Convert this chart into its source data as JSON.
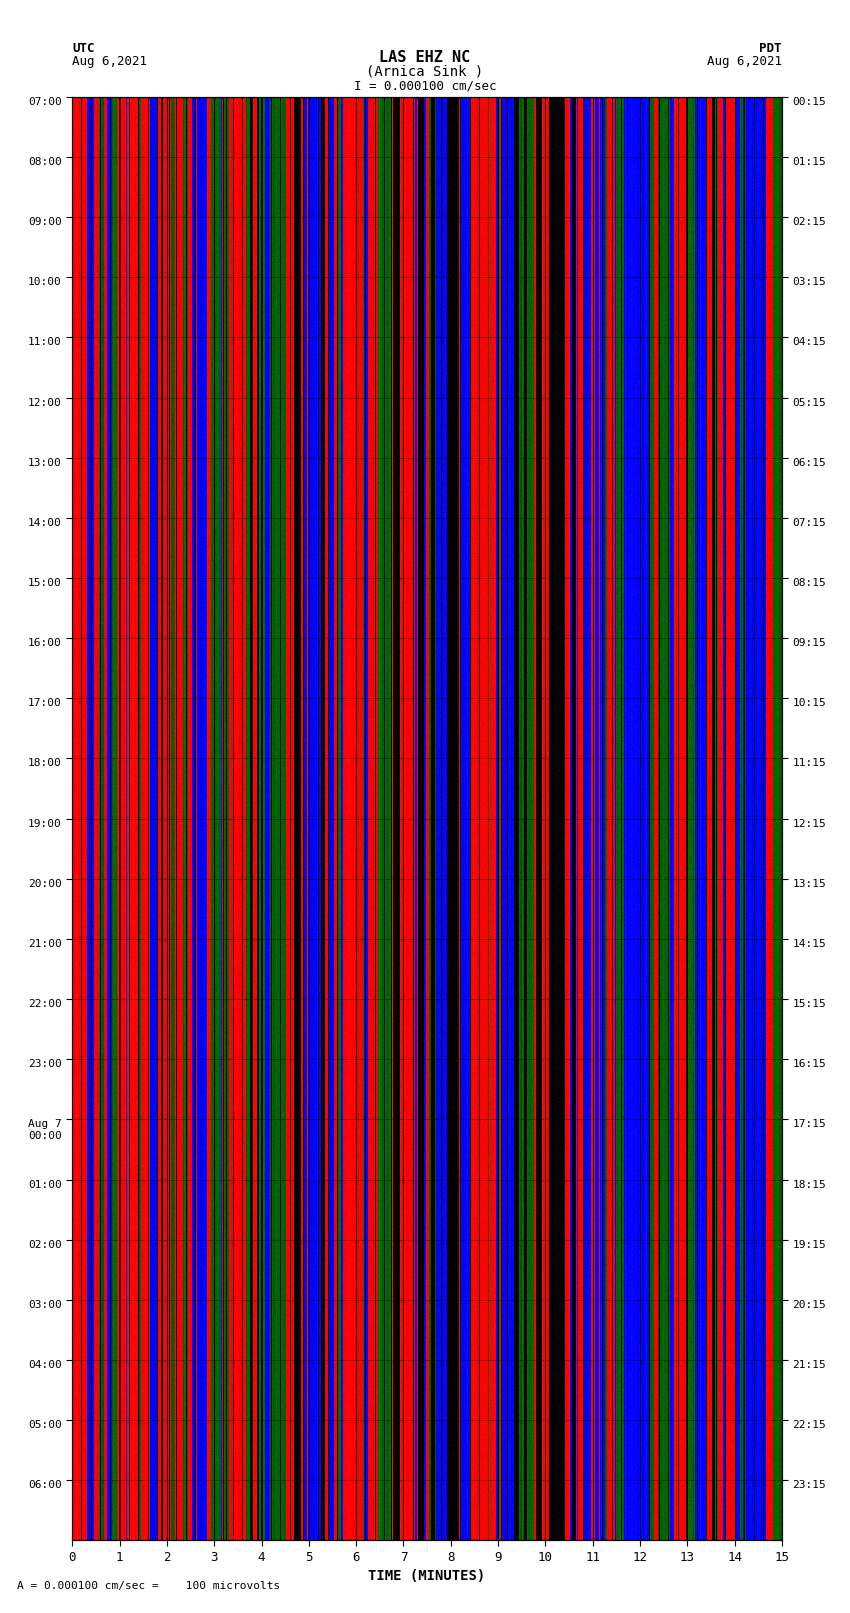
{
  "title_line1": "LAS EHZ NC",
  "title_line2": "(Arnica Sink )",
  "title_scale": "I = 0.000100 cm/sec",
  "label_utc": "UTC",
  "label_date_left": "Aug 6,2021",
  "label_pdt": "PDT",
  "label_date_right": "Aug 6,2021",
  "xlabel": "TIME (MINUTES)",
  "footer": "A = 0.000100 cm/sec =    100 microvolts",
  "xlim": [
    0,
    15
  ],
  "ytick_left_labels": [
    "07:00",
    "08:00",
    "09:00",
    "10:00",
    "11:00",
    "12:00",
    "13:00",
    "14:00",
    "15:00",
    "16:00",
    "17:00",
    "18:00",
    "19:00",
    "20:00",
    "21:00",
    "22:00",
    "23:00",
    "00:00",
    "01:00",
    "02:00",
    "03:00",
    "04:00",
    "05:00",
    "06:00"
  ],
  "ytick_right_labels": [
    "00:15",
    "01:15",
    "02:15",
    "03:15",
    "04:15",
    "05:15",
    "06:15",
    "07:15",
    "08:15",
    "09:15",
    "10:15",
    "11:15",
    "12:15",
    "13:15",
    "14:15",
    "15:15",
    "16:15",
    "17:15",
    "18:15",
    "19:15",
    "20:15",
    "21:15",
    "22:15",
    "23:15"
  ],
  "bg_color": "white",
  "num_traces": 24,
  "num_minutes": 15,
  "figsize": [
    8.5,
    16.13
  ],
  "dpi": 100
}
